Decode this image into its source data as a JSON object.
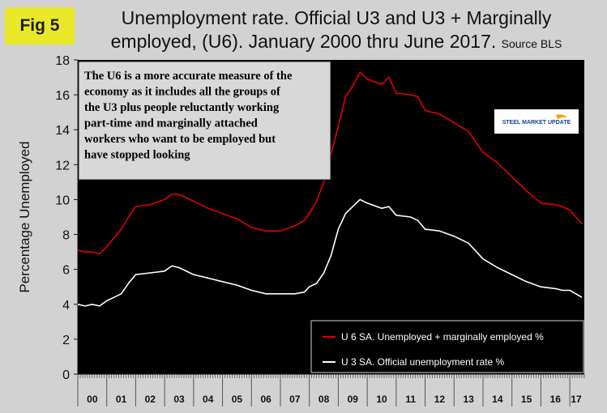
{
  "figure_label": "Fig 5",
  "title": {
    "line1": "Unemployment rate. Official U3 and U3 + Marginally",
    "line2": "employed, (U6). January 2000 thru June 2017.",
    "source": "Source BLS"
  },
  "annotation_lines": [
    "The U6 is a more accurate measure of the",
    "economy as it includes all the groups of",
    "the U3 plus people reluctantly working",
    "part-time and marginally attached",
    "workers who want to be employed but",
    "have stopped looking"
  ],
  "logo": {
    "text": "STEEL MARKET UPDATE"
  },
  "colors": {
    "u6": "#e40000",
    "u3": "#ffffff",
    "plot_bg": "#000000",
    "page_bg": "#d2d2d2",
    "badge_bg": "#e9e92a",
    "note_bg": "#d8d8d8"
  },
  "chart_data": {
    "type": "line",
    "ylabel": "Percentage Unemployed",
    "xlabel": "",
    "ylim": [
      0,
      18
    ],
    "yticks": [
      0,
      2,
      4,
      6,
      8,
      10,
      12,
      14,
      16,
      18
    ],
    "xlim": [
      2000.0,
      2017.5
    ],
    "x_tick_labels": [
      "00",
      "01",
      "02",
      "03",
      "04",
      "05",
      "06",
      "07",
      "08",
      "09",
      "10",
      "11",
      "12",
      "13",
      "14",
      "15",
      "16",
      "17"
    ],
    "grid": false,
    "legend_position": "bottom-right",
    "series": [
      {
        "name": "U 6 SA. Unemployed + marginally employed %",
        "color": "#e40000",
        "x": [
          2000.0,
          2000.25,
          2000.5,
          2000.75,
          2001.0,
          2001.25,
          2001.5,
          2001.75,
          2002.0,
          2002.5,
          2003.0,
          2003.25,
          2003.5,
          2004.0,
          2004.5,
          2005.0,
          2005.5,
          2006.0,
          2006.5,
          2007.0,
          2007.5,
          2007.83,
          2008.0,
          2008.25,
          2008.5,
          2008.75,
          2009.0,
          2009.25,
          2009.5,
          2009.75,
          2010.0,
          2010.5,
          2010.75,
          2011.0,
          2011.5,
          2011.75,
          2012.0,
          2012.5,
          2013.0,
          2013.5,
          2014.0,
          2014.5,
          2015.0,
          2015.5,
          2016.0,
          2016.5,
          2016.75,
          2017.0,
          2017.42
        ],
        "y": [
          7.1,
          7.0,
          7.0,
          6.9,
          7.3,
          7.8,
          8.3,
          9.0,
          9.6,
          9.7,
          10.0,
          10.3,
          10.3,
          9.9,
          9.5,
          9.2,
          8.9,
          8.4,
          8.2,
          8.2,
          8.5,
          8.8,
          9.2,
          9.9,
          11.0,
          12.6,
          14.2,
          15.9,
          16.5,
          17.3,
          16.9,
          16.6,
          17.0,
          16.1,
          16.0,
          15.9,
          15.1,
          14.9,
          14.4,
          13.9,
          12.7,
          12.1,
          11.3,
          10.5,
          9.8,
          9.7,
          9.6,
          9.4,
          8.6
        ]
      },
      {
        "name": "U 3 SA. Official unemployment rate %",
        "color": "#ffffff",
        "x": [
          2000.0,
          2000.25,
          2000.5,
          2000.75,
          2001.0,
          2001.25,
          2001.5,
          2001.75,
          2002.0,
          2002.5,
          2003.0,
          2003.25,
          2003.5,
          2004.0,
          2004.5,
          2005.0,
          2005.5,
          2006.0,
          2006.5,
          2007.0,
          2007.5,
          2007.83,
          2008.0,
          2008.25,
          2008.5,
          2008.75,
          2009.0,
          2009.25,
          2009.5,
          2009.75,
          2010.0,
          2010.5,
          2010.75,
          2011.0,
          2011.5,
          2011.75,
          2012.0,
          2012.5,
          2013.0,
          2013.5,
          2014.0,
          2014.5,
          2015.0,
          2015.5,
          2016.0,
          2016.5,
          2016.75,
          2017.0,
          2017.42
        ],
        "y": [
          4.0,
          3.9,
          4.0,
          3.9,
          4.2,
          4.4,
          4.6,
          5.2,
          5.7,
          5.8,
          5.9,
          6.2,
          6.1,
          5.7,
          5.5,
          5.3,
          5.1,
          4.8,
          4.6,
          4.6,
          4.6,
          4.7,
          5.0,
          5.2,
          5.8,
          6.8,
          8.3,
          9.2,
          9.6,
          10.0,
          9.8,
          9.5,
          9.6,
          9.1,
          9.0,
          8.8,
          8.3,
          8.2,
          7.9,
          7.5,
          6.6,
          6.1,
          5.7,
          5.3,
          5.0,
          4.9,
          4.8,
          4.8,
          4.4
        ]
      }
    ]
  }
}
